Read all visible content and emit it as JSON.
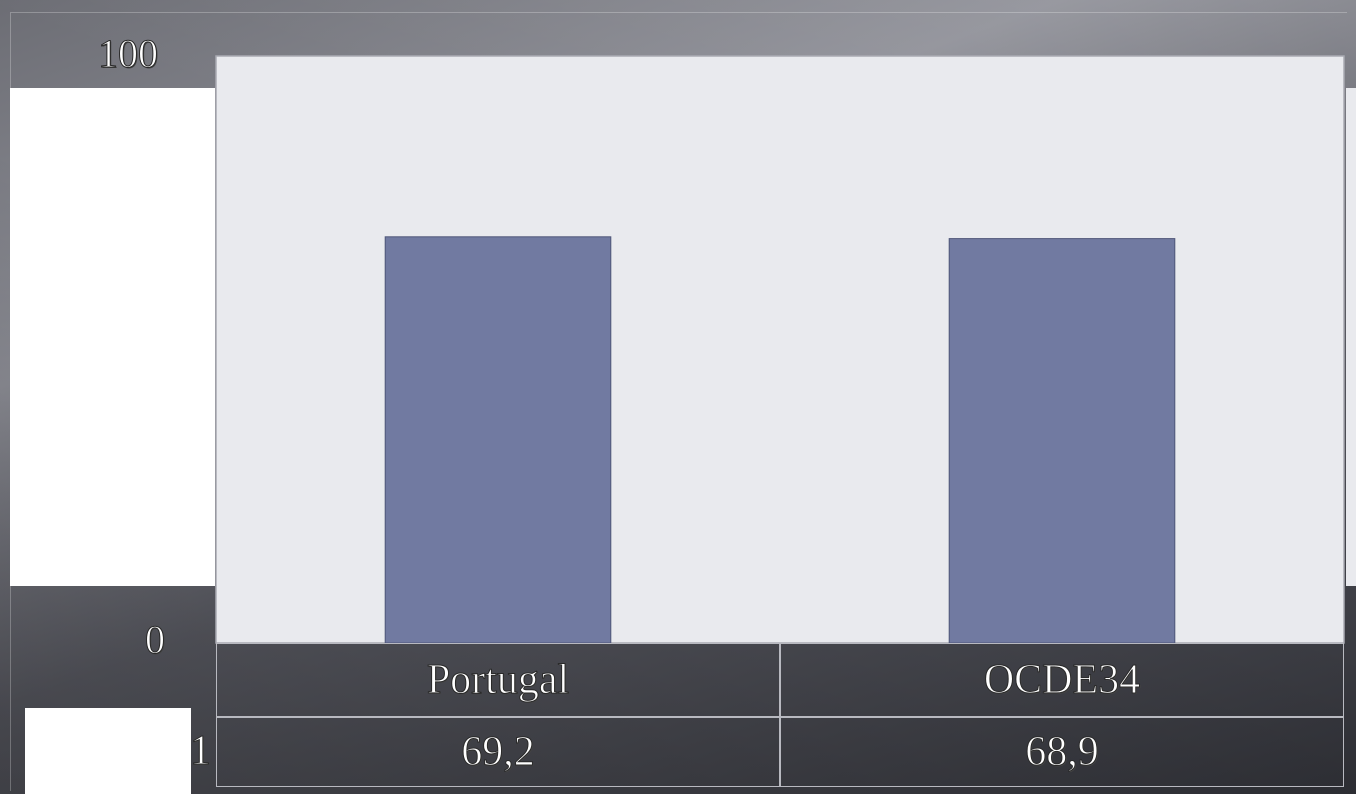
{
  "chart_data": {
    "type": "bar",
    "categories": [
      "Portugal",
      "OCDE34"
    ],
    "values": [
      69.2,
      68.9
    ],
    "value_labels": [
      "69,2",
      "68,9"
    ],
    "y_ticks": [
      "100",
      "0"
    ],
    "ylim": [
      0,
      100
    ],
    "row_stub": "1",
    "grid": false,
    "legend": "none",
    "colors": {
      "bar": "#717aa1",
      "plot_background": "#e9eaee",
      "plot_border": "#a9aab2"
    }
  }
}
